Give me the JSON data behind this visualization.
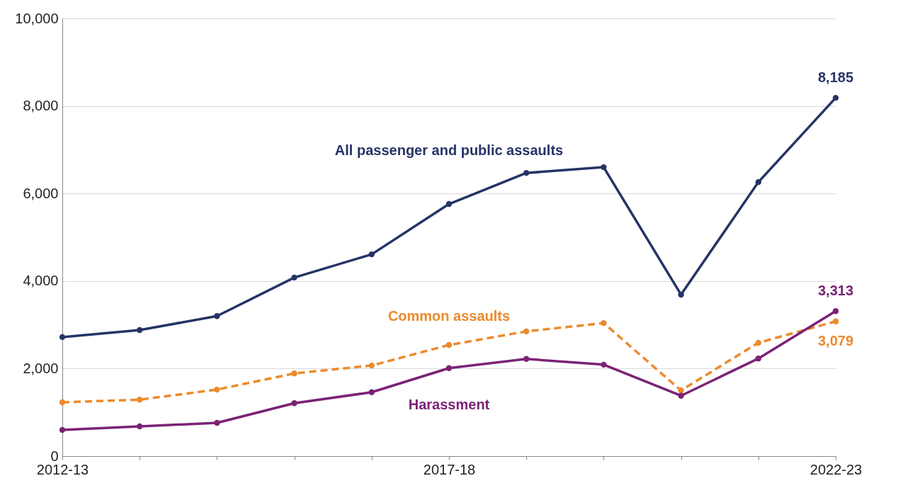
{
  "chart_data": {
    "type": "line",
    "categories": [
      "2012-13",
      null,
      null,
      null,
      null,
      "2017-18",
      null,
      null,
      null,
      null,
      "2022-23"
    ],
    "ylim": [
      0,
      10000
    ],
    "yticks": [
      {
        "value": 0,
        "label": "0"
      },
      {
        "value": 2000,
        "label": "2,000"
      },
      {
        "value": 4000,
        "label": "4,000"
      },
      {
        "value": 6000,
        "label": "6,000"
      },
      {
        "value": 8000,
        "label": "8,000"
      },
      {
        "value": 10000,
        "label": "10,000"
      }
    ],
    "grid": "y",
    "marker": "circle",
    "series": [
      {
        "name": "All passenger and public assaults",
        "color": "#253466",
        "line_style": "solid",
        "values": [
          2720,
          2880,
          3200,
          4080,
          4610,
          5760,
          6470,
          6600,
          3690,
          6260,
          8185
        ],
        "value_labels": [
          null,
          null,
          null,
          null,
          null,
          null,
          null,
          null,
          null,
          null,
          "8,185"
        ]
      },
      {
        "name": "Common assaults",
        "color": "#ec8a2c",
        "line_style": "dashed",
        "values": [
          1230,
          1290,
          1520,
          1890,
          2070,
          2540,
          2850,
          3040,
          1500,
          2590,
          3079
        ],
        "value_labels": [
          null,
          null,
          null,
          null,
          null,
          null,
          null,
          null,
          null,
          null,
          "3,079"
        ]
      },
      {
        "name": "Harassment",
        "color": "#7b2276",
        "line_style": "solid",
        "values": [
          600,
          680,
          760,
          1210,
          1460,
          2010,
          2220,
          2090,
          1380,
          2230,
          3313
        ],
        "value_labels": [
          null,
          null,
          null,
          null,
          null,
          null,
          null,
          null,
          null,
          null,
          "3,313"
        ]
      }
    ]
  }
}
